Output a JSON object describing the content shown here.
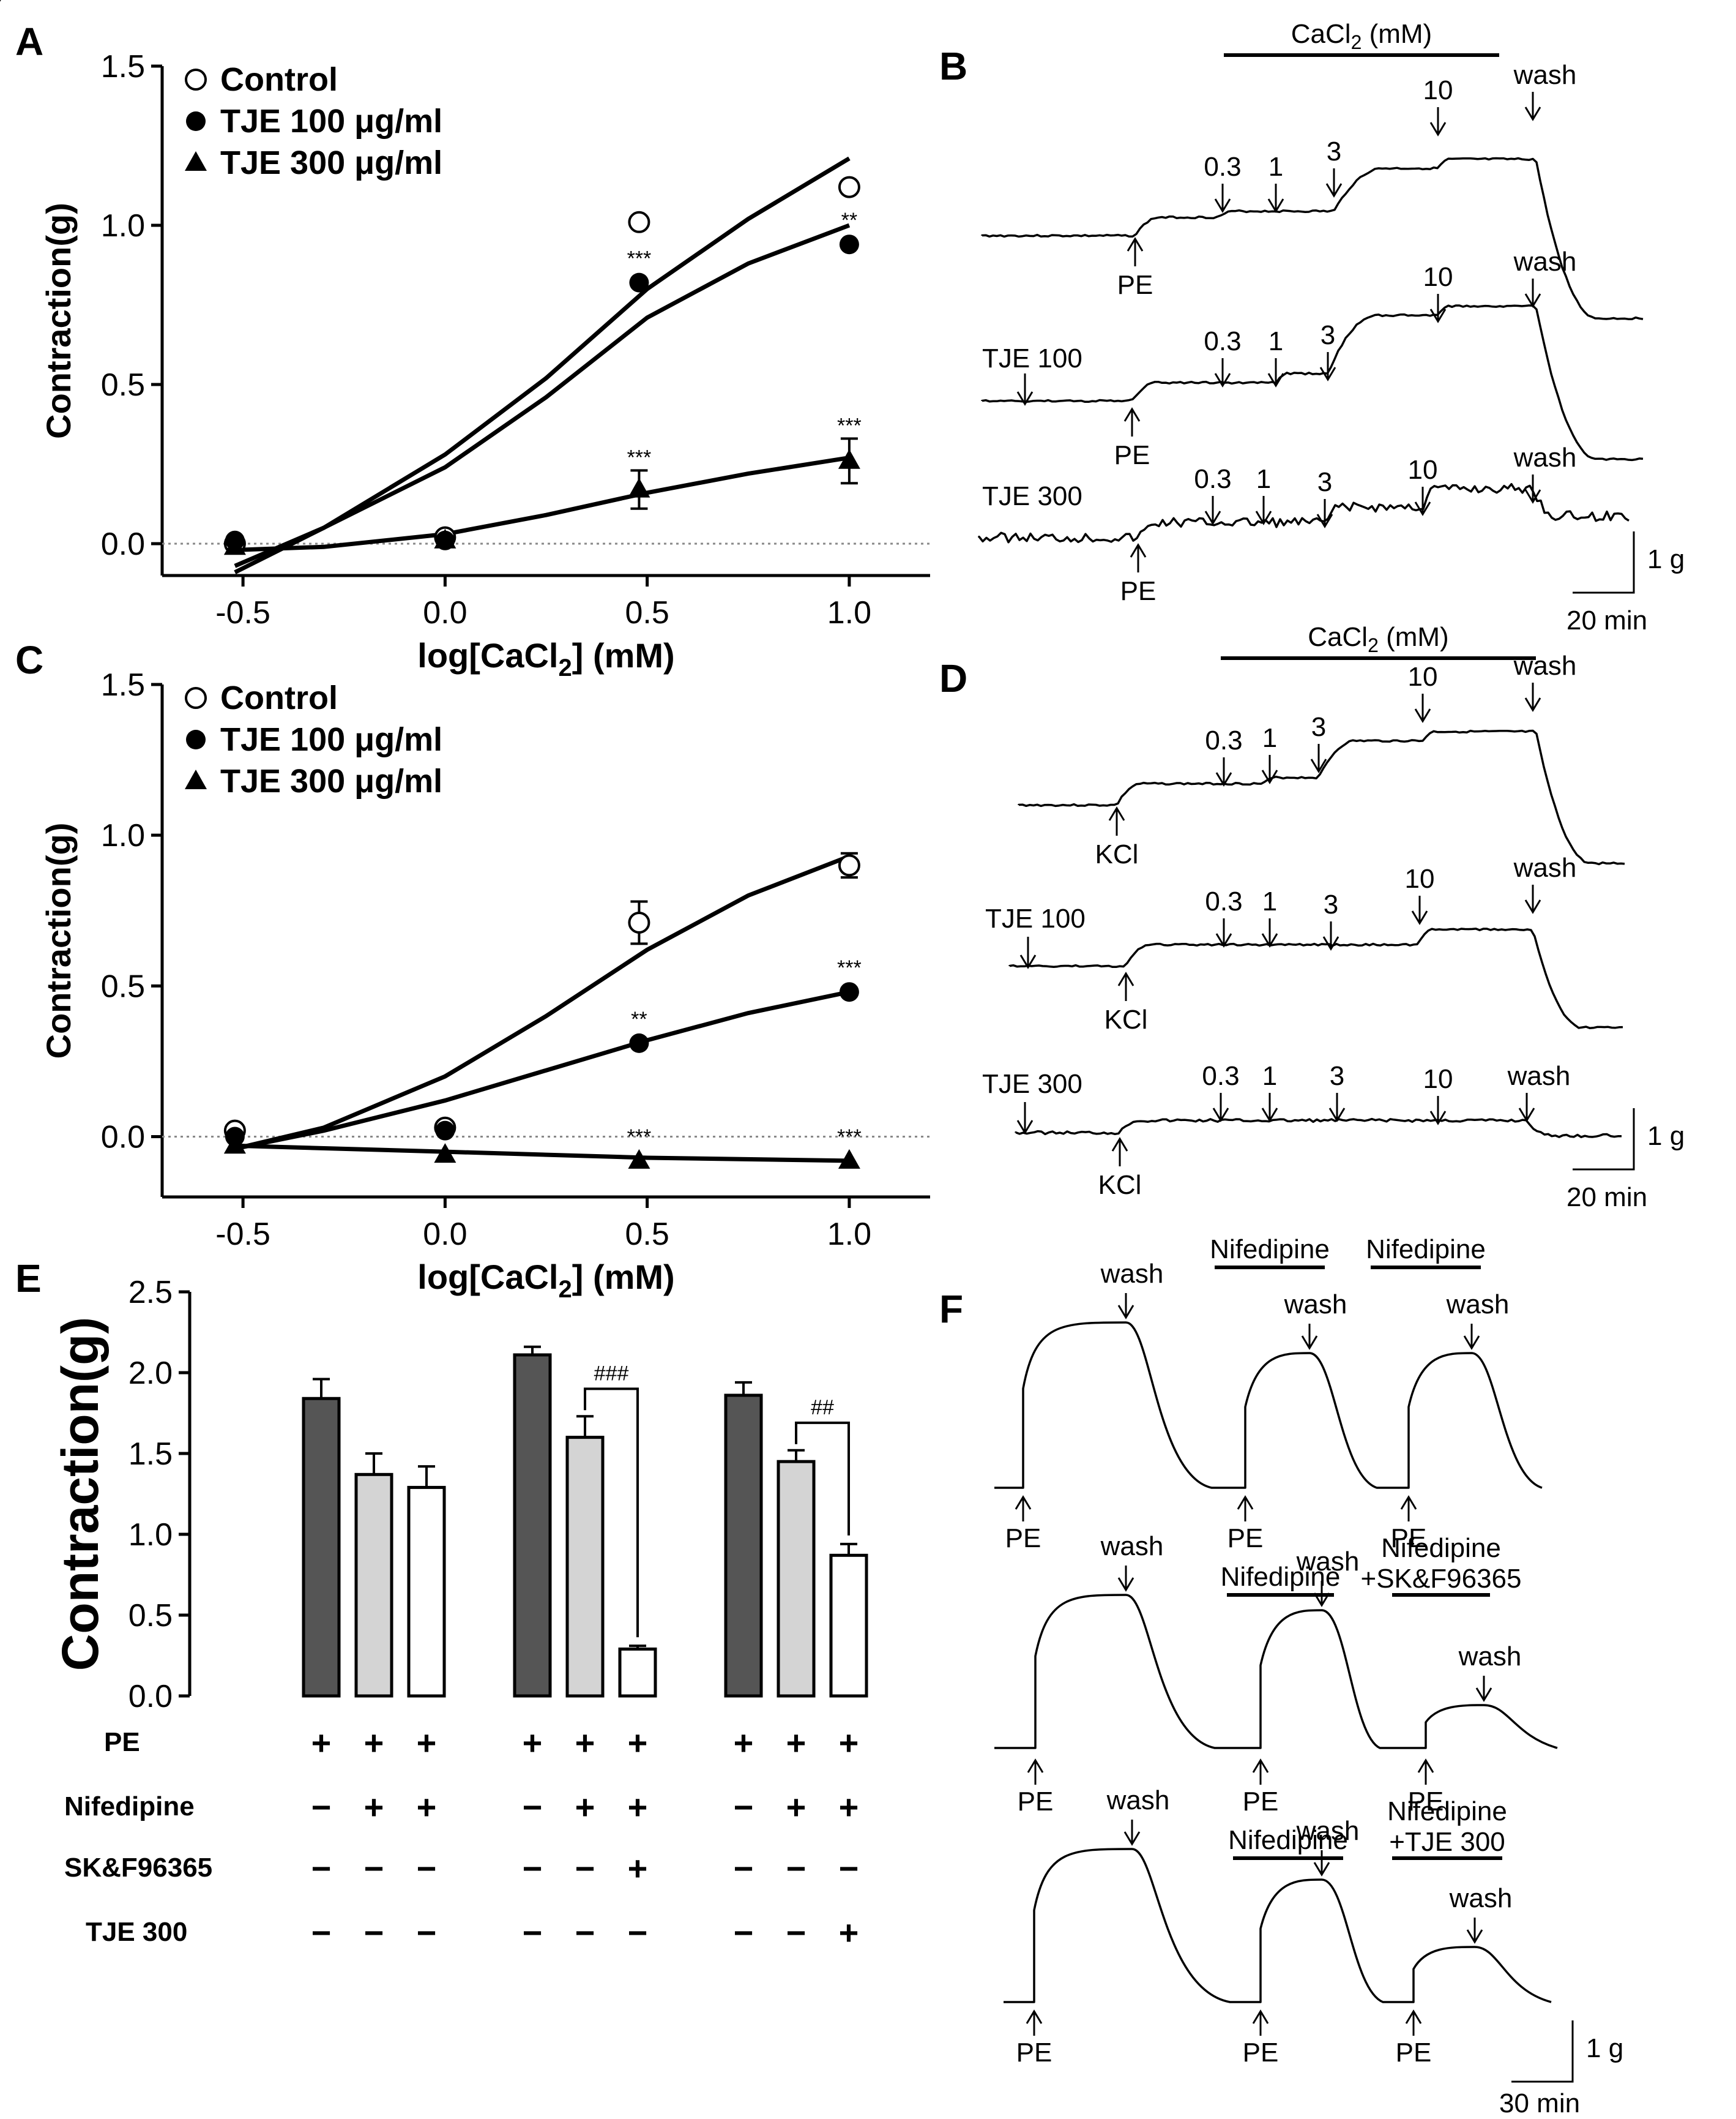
{
  "panels": {
    "A": "A",
    "B": "B",
    "C": "C",
    "D": "D",
    "E": "E",
    "F": "F"
  },
  "chart_data": [
    {
      "id": "A",
      "type": "scatter",
      "title": "",
      "xlabel": "log[CaCl2] (mM)",
      "xlabel_main": "log[CaCl",
      "xlabel_sub": "2",
      "xlabel_tail": "] (mM)",
      "ylabel": "Contraction(g)",
      "xlim": [
        -0.7,
        1.2
      ],
      "ylim": [
        -0.1,
        1.5
      ],
      "xticks": [
        -0.5,
        0.0,
        0.5,
        1.0
      ],
      "xtick_labels": [
        "-0.5",
        "0.0",
        "0.5",
        "1.0"
      ],
      "yticks": [
        0.0,
        0.5,
        1.0,
        1.5
      ],
      "ytick_labels": [
        "0.0",
        "0.5",
        "1.0",
        "1.5"
      ],
      "legend": [
        "Control",
        "TJE 100 μg/ml",
        "TJE 300 μg/ml"
      ],
      "series": [
        {
          "name": "Control",
          "marker": "open-circle",
          "x": [
            -0.52,
            0.0,
            0.48,
            1.0
          ],
          "values": [
            0.0,
            0.02,
            1.01,
            1.12
          ],
          "err": [
            0,
            0,
            0,
            0
          ],
          "fit": [
            [
              -0.52,
              -0.09
            ],
            [
              -0.3,
              0.05
            ],
            [
              0.0,
              0.28
            ],
            [
              0.25,
              0.52
            ],
            [
              0.5,
              0.8
            ],
            [
              0.75,
              1.02
            ],
            [
              1.0,
              1.21
            ]
          ]
        },
        {
          "name": "TJE 100 μg/ml",
          "marker": "filled-circle",
          "x": [
            -0.52,
            0.0,
            0.48,
            1.0
          ],
          "values": [
            0.01,
            0.01,
            0.82,
            0.94
          ],
          "err": [
            0,
            0,
            0,
            0
          ],
          "sig": [
            "",
            "",
            "***",
            "**"
          ],
          "fit": [
            [
              -0.52,
              -0.07
            ],
            [
              -0.3,
              0.05
            ],
            [
              0.0,
              0.24
            ],
            [
              0.25,
              0.46
            ],
            [
              0.5,
              0.71
            ],
            [
              0.75,
              0.88
            ],
            [
              1.0,
              1.0
            ]
          ]
        },
        {
          "name": "TJE 300 μg/ml",
          "marker": "filled-triangle",
          "x": [
            -0.52,
            0.0,
            0.48,
            1.0
          ],
          "values": [
            -0.01,
            0.01,
            0.17,
            0.26
          ],
          "err": [
            0,
            0,
            0.06,
            0.07
          ],
          "sig": [
            "",
            "",
            "***",
            "***"
          ],
          "fit": [
            [
              -0.52,
              -0.02
            ],
            [
              -0.3,
              -0.01
            ],
            [
              0.0,
              0.03
            ],
            [
              0.25,
              0.09
            ],
            [
              0.5,
              0.16
            ],
            [
              0.75,
              0.22
            ],
            [
              1.0,
              0.27
            ]
          ]
        }
      ]
    },
    {
      "id": "C",
      "type": "scatter",
      "title": "",
      "xlabel": "log[CaCl2] (mM)",
      "xlabel_main": "log[CaCl",
      "xlabel_sub": "2",
      "xlabel_tail": "] (mM)",
      "ylabel": "Contraction(g)",
      "xlim": [
        -0.7,
        1.2
      ],
      "ylim": [
        -0.2,
        1.5
      ],
      "xticks": [
        -0.5,
        0.0,
        0.5,
        1.0
      ],
      "xtick_labels": [
        "-0.5",
        "0.0",
        "0.5",
        "1.0"
      ],
      "yticks": [
        0.0,
        0.5,
        1.0,
        1.5
      ],
      "ytick_labels": [
        "0.0",
        "0.5",
        "1.0",
        "1.5"
      ],
      "legend": [
        "Control",
        "TJE 100 μg/ml",
        "TJE 300 μg/ml"
      ],
      "series": [
        {
          "name": "Control",
          "marker": "open-circle",
          "x": [
            -0.52,
            0.0,
            0.48,
            1.0
          ],
          "values": [
            0.02,
            0.03,
            0.71,
            0.9
          ],
          "err": [
            0,
            0,
            0.07,
            0.04
          ],
          "fit": [
            [
              -0.52,
              -0.04
            ],
            [
              -0.3,
              0.03
            ],
            [
              0.0,
              0.2
            ],
            [
              0.25,
              0.4
            ],
            [
              0.5,
              0.62
            ],
            [
              0.75,
              0.8
            ],
            [
              1.0,
              0.93
            ]
          ]
        },
        {
          "name": "TJE 100 μg/ml",
          "marker": "filled-circle",
          "x": [
            -0.52,
            0.0,
            0.48,
            1.0
          ],
          "values": [
            0.0,
            0.02,
            0.31,
            0.48
          ],
          "err": [
            0,
            0,
            0,
            0
          ],
          "sig": [
            "",
            "",
            "**",
            "***"
          ],
          "fit": [
            [
              -0.52,
              -0.04
            ],
            [
              -0.3,
              0.02
            ],
            [
              0.0,
              0.12
            ],
            [
              0.25,
              0.22
            ],
            [
              0.5,
              0.32
            ],
            [
              0.75,
              0.41
            ],
            [
              1.0,
              0.48
            ]
          ]
        },
        {
          "name": "TJE 300 μg/ml",
          "marker": "filled-triangle",
          "x": [
            -0.52,
            0.0,
            0.48,
            1.0
          ],
          "values": [
            -0.03,
            -0.06,
            -0.08,
            -0.08
          ],
          "err": [
            0,
            0,
            0,
            0
          ],
          "sig": [
            "",
            "",
            "***",
            "***"
          ],
          "fit": [
            [
              -0.52,
              -0.03
            ],
            [
              0.0,
              -0.05
            ],
            [
              0.5,
              -0.07
            ],
            [
              1.0,
              -0.08
            ]
          ]
        }
      ]
    },
    {
      "id": "E",
      "type": "bar",
      "title": "",
      "xlabel": "",
      "ylabel": "Contraction(g)",
      "ylim": [
        0,
        2.5
      ],
      "yticks": [
        0.0,
        0.5,
        1.0,
        1.5,
        2.0,
        2.5
      ],
      "ytick_labels": [
        "0.0",
        "0.5",
        "1.0",
        "1.5",
        "2.0",
        "2.5"
      ],
      "groups": [
        {
          "values": [
            1.84,
            1.37,
            1.29
          ],
          "err": [
            0.12,
            0.13,
            0.13
          ],
          "fills": [
            "#555555",
            "#d4d4d4",
            "#ffffff"
          ]
        },
        {
          "values": [
            2.11,
            1.6,
            0.29
          ],
          "err": [
            0.05,
            0.13,
            0.02
          ],
          "fills": [
            "#555555",
            "#d4d4d4",
            "#ffffff"
          ],
          "bracket": "###"
        },
        {
          "values": [
            1.86,
            1.45,
            0.87
          ],
          "err": [
            0.08,
            0.07,
            0.07
          ],
          "fills": [
            "#555555",
            "#d4d4d4",
            "#ffffff"
          ],
          "bracket": "##"
        }
      ],
      "conditions": [
        {
          "name": "PE",
          "signs": [
            "+",
            "+",
            "+",
            "+",
            "+",
            "+",
            "+",
            "+",
            "+"
          ]
        },
        {
          "name": "Nifedipine",
          "signs": [
            "−",
            "+",
            "+",
            "−",
            "+",
            "+",
            "−",
            "+",
            "+"
          ]
        },
        {
          "name": "SK&F96365",
          "signs": [
            "−",
            "−",
            "−",
            "−",
            "−",
            "+",
            "−",
            "−",
            "−"
          ]
        },
        {
          "name": "TJE 300",
          "signs": [
            "−",
            "−",
            "−",
            "−",
            "−",
            "−",
            "−",
            "−",
            "+"
          ]
        }
      ]
    }
  ],
  "traces": {
    "B": {
      "bar_label": "CaCl2 (mM)",
      "bar_label_main": "CaCl",
      "bar_label_sub": "2",
      "bar_label_tail": " (mM)",
      "rows": [
        {
          "treatment": "",
          "stim": "PE",
          "doses": [
            "0.3",
            "1",
            "3",
            "10"
          ],
          "wash": "wash"
        },
        {
          "treatment": "TJE 100",
          "stim": "PE",
          "doses": [
            "0.3",
            "1",
            "3",
            "10"
          ],
          "wash": "wash"
        },
        {
          "treatment": "TJE 300",
          "stim": "PE",
          "doses": [
            "0.3",
            "1",
            "3",
            "10"
          ],
          "wash": "wash"
        }
      ],
      "scale_force": "1 g",
      "scale_time": "20 min"
    },
    "D": {
      "bar_label": "CaCl2 (mM)",
      "bar_label_main": "CaCl",
      "bar_label_sub": "2",
      "bar_label_tail": " (mM)",
      "rows": [
        {
          "treatment": "",
          "stim": "KCl",
          "doses": [
            "0.3",
            "1",
            "3",
            "10"
          ],
          "wash": "wash"
        },
        {
          "treatment": "TJE 100",
          "stim": "KCl",
          "doses": [
            "0.3",
            "1",
            "3",
            "10"
          ],
          "wash": "wash"
        },
        {
          "treatment": "TJE 300",
          "stim": "KCl",
          "doses": [
            "0.3",
            "1",
            "3",
            "10"
          ],
          "wash": "wash"
        }
      ],
      "scale_force": "1 g",
      "scale_time": "20 min"
    },
    "F": {
      "rows": [
        {
          "labels": [
            "Nifedipine",
            "Nifedipine"
          ],
          "sublabels": [
            "",
            ""
          ],
          "stim": "PE",
          "wash": "wash"
        },
        {
          "labels": [
            "Nifedipine",
            "Nifedipine"
          ],
          "sublabels": [
            "",
            "+SK&F96365"
          ],
          "stim": "PE",
          "wash": "wash"
        },
        {
          "labels": [
            "Nifedipine",
            "Nifedipine"
          ],
          "sublabels": [
            "",
            "+TJE 300"
          ],
          "stim": "PE",
          "wash": "wash"
        }
      ],
      "scale_force": "1 g",
      "scale_time": "30 min"
    }
  }
}
